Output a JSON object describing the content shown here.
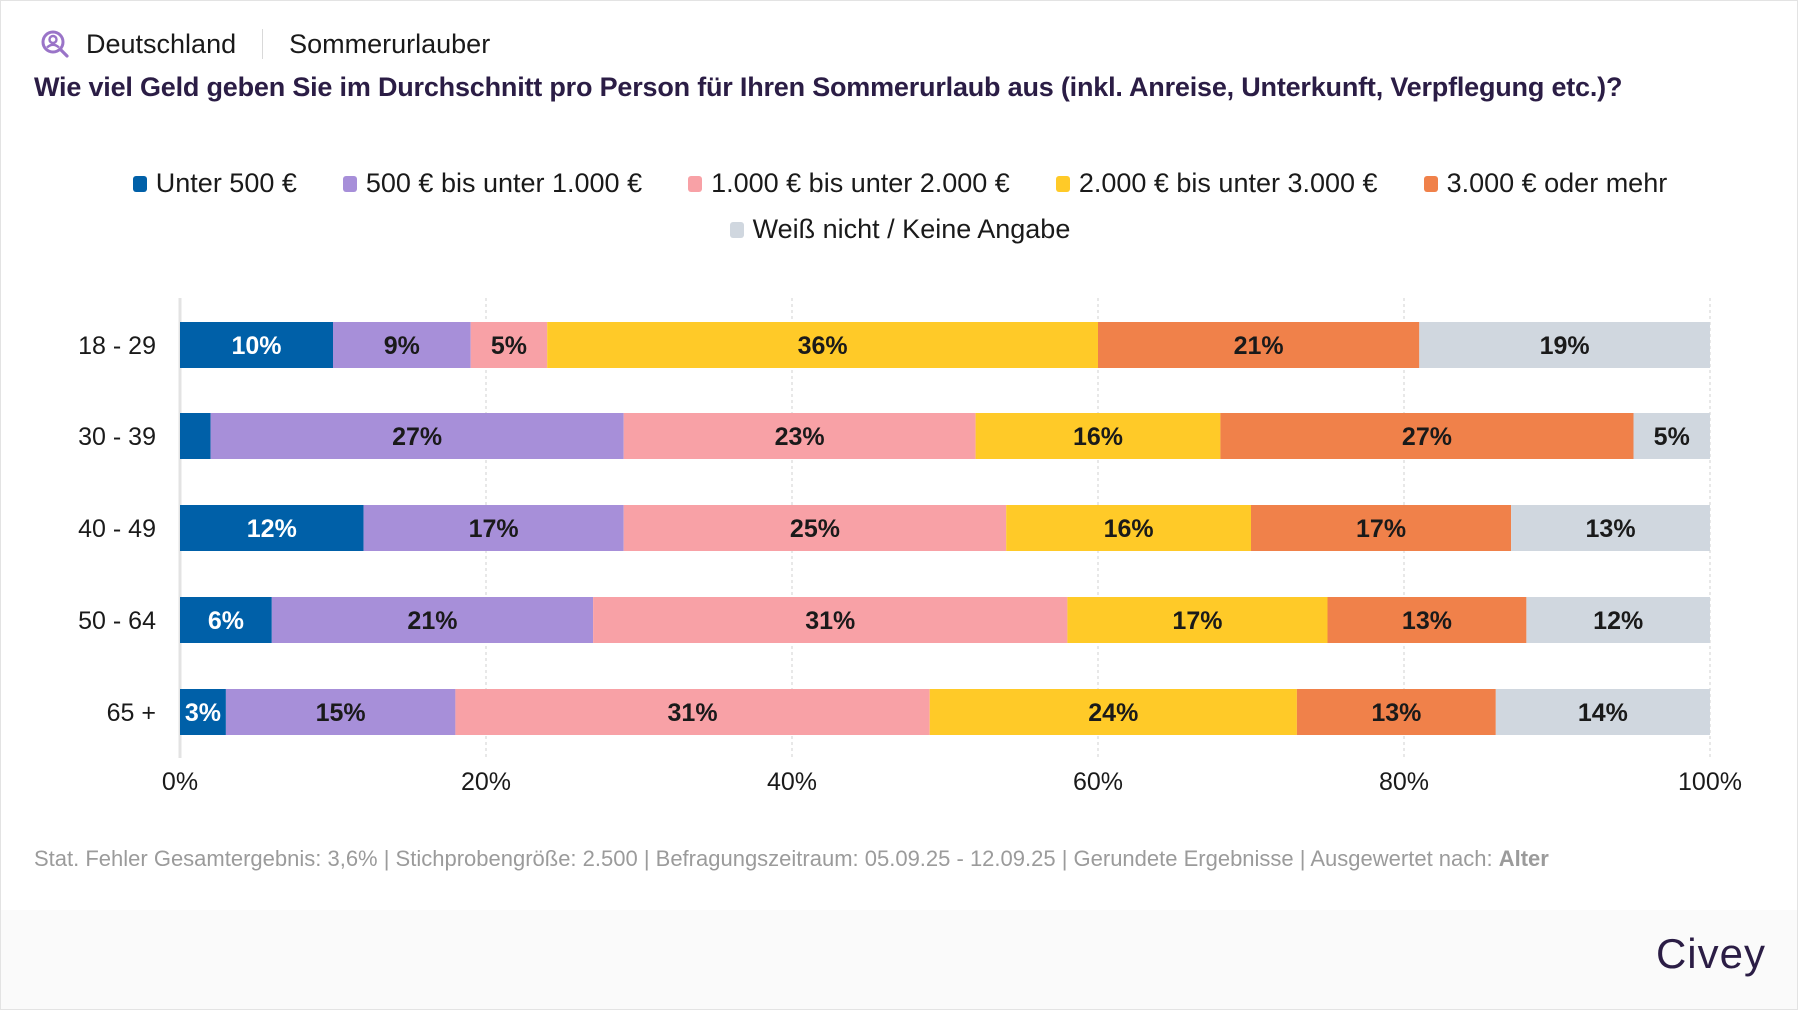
{
  "header": {
    "region": "Deutschland",
    "audience": "Sommerurlauber",
    "icon": "user-search-icon"
  },
  "title": "Wie viel Geld geben Sie im Durchschnitt pro Person für Ihren Sommerurlaub aus (inkl. Anreise, Unterkunft, Verpflegung etc.)?",
  "footer": {
    "text": "Stat. Fehler Gesamtergebnis: 3,6% | Stichprobengröße: 2.500 | Befragungszeitraum: 05.09.25 - 12.09.25 | Gerundete Ergebnisse | Ausgewertet nach: ",
    "grouping": "Alter"
  },
  "brand": "Civey",
  "chart_data": {
    "type": "bar",
    "orientation": "horizontal",
    "stacked": true,
    "title": "Wie viel Geld geben Sie im Durchschnitt pro Person für Ihren Sommerurlaub aus (inkl. Anreise, Unterkunft, Verpflegung etc.)?",
    "xlabel": "",
    "ylabel": "",
    "xlim": [
      0,
      100
    ],
    "x_ticks": [
      "0%",
      "20%",
      "40%",
      "60%",
      "80%",
      "100%"
    ],
    "x_tick_values": [
      0,
      20,
      40,
      60,
      80,
      100
    ],
    "grid": true,
    "legend_position": "top-center",
    "categories": [
      "18 - 29",
      "30 - 39",
      "40 - 49",
      "50 - 64",
      "65 +"
    ],
    "series": [
      {
        "name": "Unter 500 €",
        "color": "#0060a8",
        "label_color": "#ffffff",
        "values": [
          10,
          2,
          12,
          6,
          3
        ],
        "labels": [
          "10%",
          "",
          "12%",
          "6%",
          "3%"
        ]
      },
      {
        "name": "500 € bis unter 1.000 €",
        "color": "#a78fd9",
        "label_color": "#1a1a1a",
        "values": [
          9,
          27,
          17,
          21,
          15
        ],
        "labels": [
          "9%",
          "27%",
          "17%",
          "21%",
          "15%"
        ]
      },
      {
        "name": "1.000 € bis unter 2.000 €",
        "color": "#f8a1a6",
        "label_color": "#1a1a1a",
        "values": [
          5,
          23,
          25,
          31,
          31
        ],
        "labels": [
          "5%",
          "23%",
          "25%",
          "31%",
          "31%"
        ]
      },
      {
        "name": "2.000 € bis unter 3.000 €",
        "color": "#ffca28",
        "label_color": "#1a1a1a",
        "values": [
          36,
          16,
          16,
          17,
          24
        ],
        "labels": [
          "36%",
          "16%",
          "16%",
          "17%",
          "24%"
        ]
      },
      {
        "name": "3.000 € oder mehr",
        "color": "#f0814a",
        "label_color": "#1a1a1a",
        "values": [
          21,
          27,
          17,
          13,
          13
        ],
        "labels": [
          "21%",
          "27%",
          "17%",
          "13%",
          "13%"
        ]
      },
      {
        "name": "Weiß nicht / Keine Angabe",
        "color": "#d0d7df",
        "label_color": "#1a1a1a",
        "values": [
          19,
          5,
          13,
          12,
          14
        ],
        "labels": [
          "19%",
          "5%",
          "13%",
          "12%",
          "14%"
        ]
      }
    ]
  }
}
